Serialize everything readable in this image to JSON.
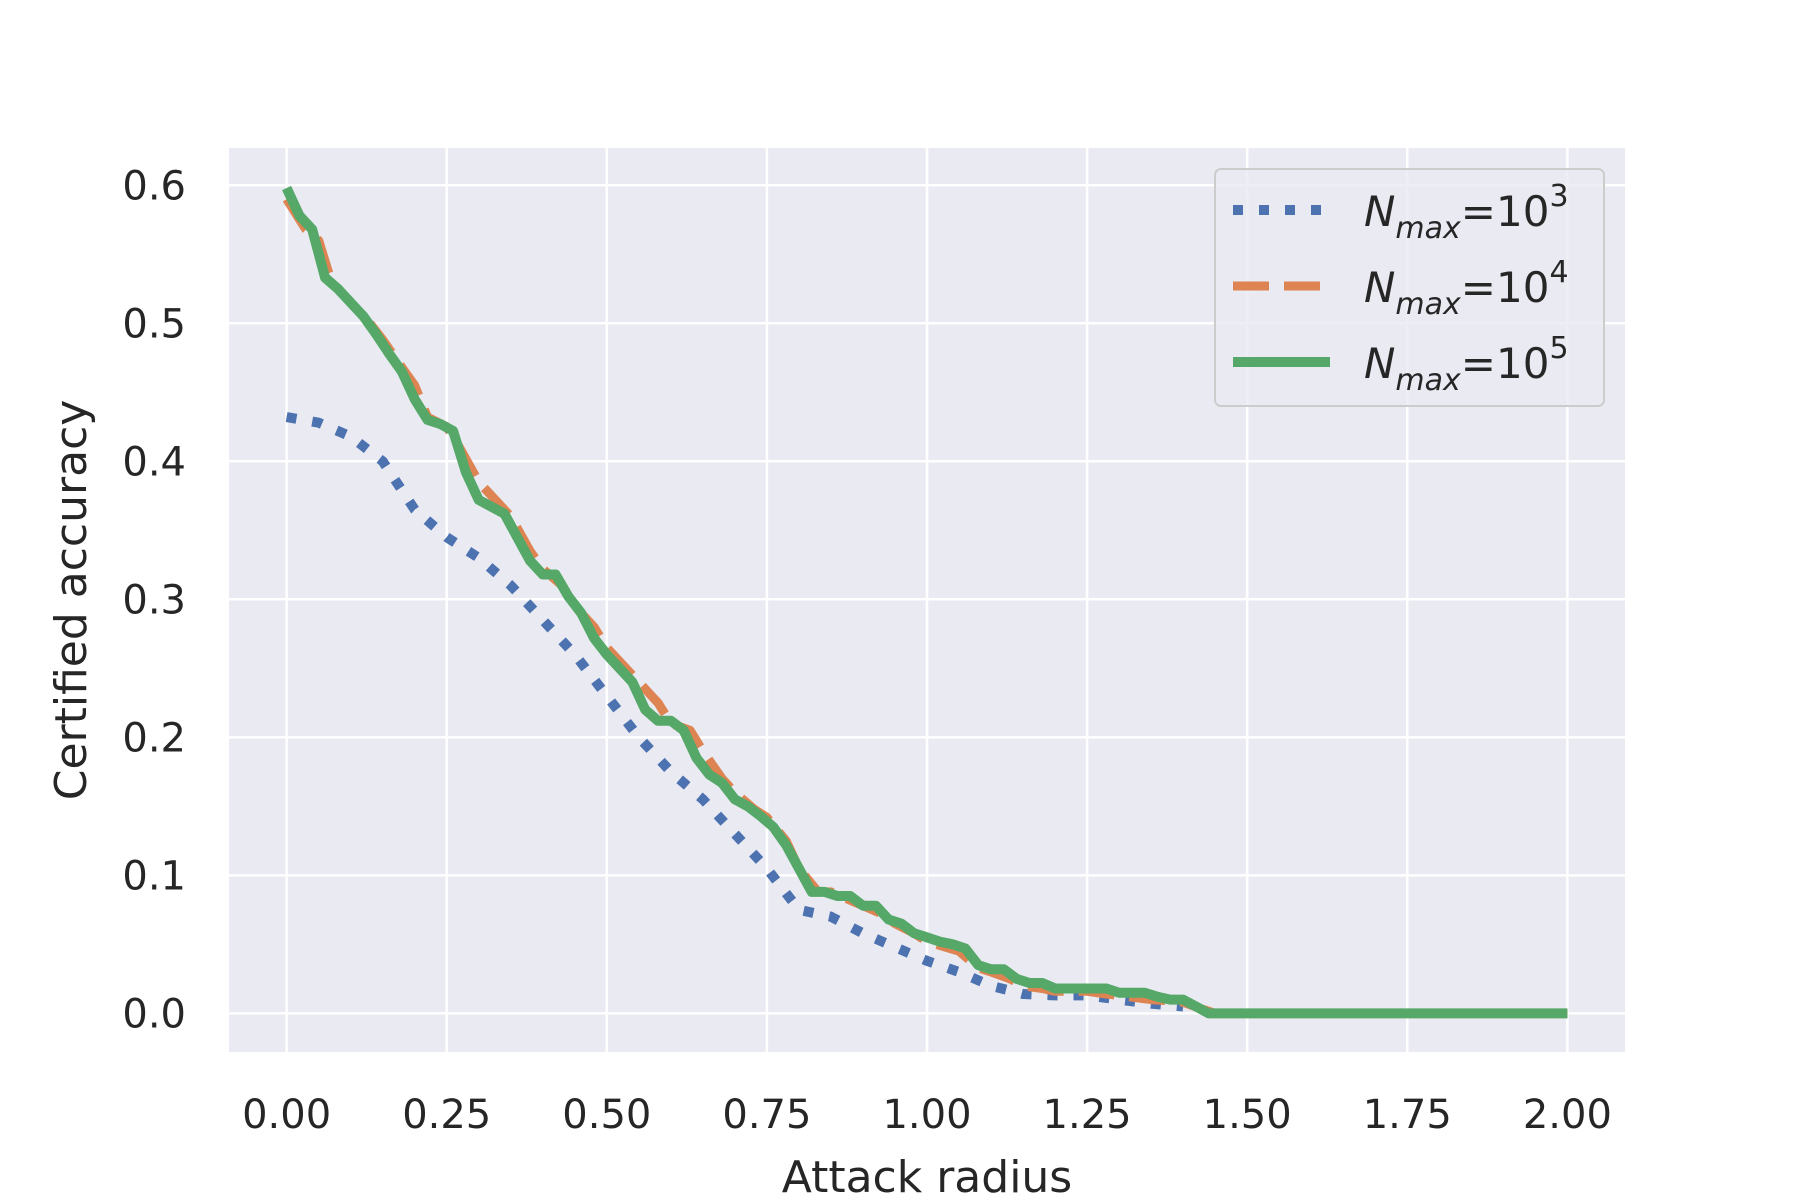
{
  "chart_data": {
    "type": "line",
    "xlabel": "Attack radius",
    "ylabel": "Certified accuracy",
    "xlim": [
      -0.09,
      2.09
    ],
    "ylim": [
      -0.028,
      0.627
    ],
    "xticks": [
      0.0,
      0.25,
      0.5,
      0.75,
      1.0,
      1.25,
      1.5,
      1.75,
      2.0
    ],
    "xtick_labels": [
      "0.00",
      "0.25",
      "0.50",
      "0.75",
      "1.00",
      "1.25",
      "1.50",
      "1.75",
      "2.00"
    ],
    "yticks": [
      0.0,
      0.1,
      0.2,
      0.3,
      0.4,
      0.5,
      0.6
    ],
    "ytick_labels": [
      "0.0",
      "0.1",
      "0.2",
      "0.3",
      "0.4",
      "0.5",
      "0.6"
    ],
    "grid": true,
    "background": "#eaeaf2",
    "legend_position": "top-right",
    "series": [
      {
        "base": "N",
        "sub": "max",
        "eq": "=10",
        "exp": "3",
        "color": "#4c72b0",
        "style": "dotted",
        "x": [
          0.0,
          0.05,
          0.1,
          0.15,
          0.2,
          0.25,
          0.3,
          0.35,
          0.4,
          0.45,
          0.5,
          0.55,
          0.6,
          0.65,
          0.7,
          0.75,
          0.8,
          0.85,
          0.9,
          0.95,
          1.0,
          1.05,
          1.1,
          1.15,
          1.2,
          1.25,
          1.3,
          1.35,
          1.4
        ],
        "y": [
          0.432,
          0.428,
          0.418,
          0.4,
          0.365,
          0.345,
          0.33,
          0.31,
          0.285,
          0.26,
          0.23,
          0.2,
          0.175,
          0.155,
          0.13,
          0.105,
          0.075,
          0.07,
          0.058,
          0.048,
          0.038,
          0.03,
          0.02,
          0.014,
          0.013,
          0.013,
          0.01,
          0.007,
          0.005
        ]
      },
      {
        "base": "N",
        "sub": "max",
        "eq": "=10",
        "exp": "4",
        "color": "#dd8452",
        "style": "dashed",
        "x": [
          0.0,
          0.03,
          0.05,
          0.07,
          0.1,
          0.13,
          0.15,
          0.18,
          0.2,
          0.22,
          0.25,
          0.27,
          0.3,
          0.33,
          0.35,
          0.38,
          0.4,
          0.43,
          0.45,
          0.48,
          0.5,
          0.53,
          0.55,
          0.58,
          0.6,
          0.63,
          0.65,
          0.68,
          0.7,
          0.73,
          0.75,
          0.78,
          0.8,
          0.83,
          0.85,
          0.88,
          0.9,
          0.93,
          0.95,
          0.98,
          1.0,
          1.05,
          1.08,
          1.1,
          1.13,
          1.15,
          1.18,
          1.2,
          1.25,
          1.28,
          1.3,
          1.35,
          1.38,
          1.4,
          1.43,
          1.45,
          1.5,
          1.75,
          2.0
        ],
        "y": [
          0.59,
          0.568,
          0.56,
          0.53,
          0.515,
          0.5,
          0.488,
          0.468,
          0.455,
          0.432,
          0.425,
          0.41,
          0.385,
          0.37,
          0.36,
          0.335,
          0.322,
          0.31,
          0.295,
          0.28,
          0.265,
          0.25,
          0.24,
          0.225,
          0.21,
          0.205,
          0.19,
          0.17,
          0.16,
          0.148,
          0.142,
          0.125,
          0.105,
          0.088,
          0.088,
          0.082,
          0.078,
          0.072,
          0.065,
          0.058,
          0.052,
          0.045,
          0.033,
          0.03,
          0.025,
          0.02,
          0.018,
          0.016,
          0.016,
          0.014,
          0.013,
          0.01,
          0.009,
          0.008,
          0.003,
          0.0,
          0.0,
          0.0,
          0.0
        ]
      },
      {
        "base": "N",
        "sub": "max",
        "eq": "=10",
        "exp": "5",
        "color": "#55a868",
        "style": "solid",
        "x": [
          0.0,
          0.02,
          0.04,
          0.06,
          0.08,
          0.1,
          0.12,
          0.14,
          0.16,
          0.18,
          0.2,
          0.22,
          0.24,
          0.26,
          0.28,
          0.3,
          0.32,
          0.34,
          0.36,
          0.38,
          0.4,
          0.42,
          0.44,
          0.46,
          0.48,
          0.5,
          0.52,
          0.54,
          0.56,
          0.58,
          0.6,
          0.62,
          0.64,
          0.66,
          0.68,
          0.7,
          0.72,
          0.74,
          0.76,
          0.78,
          0.8,
          0.82,
          0.84,
          0.86,
          0.88,
          0.9,
          0.92,
          0.94,
          0.96,
          0.98,
          1.0,
          1.02,
          1.04,
          1.06,
          1.08,
          1.1,
          1.12,
          1.14,
          1.16,
          1.18,
          1.2,
          1.22,
          1.24,
          1.26,
          1.28,
          1.3,
          1.32,
          1.34,
          1.36,
          1.38,
          1.4,
          1.42,
          1.44,
          1.5,
          1.6,
          1.75,
          1.9,
          2.0
        ],
        "y": [
          0.598,
          0.578,
          0.568,
          0.533,
          0.525,
          0.515,
          0.505,
          0.492,
          0.478,
          0.465,
          0.445,
          0.43,
          0.427,
          0.422,
          0.392,
          0.372,
          0.367,
          0.362,
          0.345,
          0.328,
          0.318,
          0.318,
          0.302,
          0.29,
          0.272,
          0.26,
          0.25,
          0.24,
          0.22,
          0.212,
          0.212,
          0.205,
          0.185,
          0.173,
          0.167,
          0.155,
          0.15,
          0.143,
          0.135,
          0.122,
          0.105,
          0.088,
          0.088,
          0.085,
          0.085,
          0.078,
          0.078,
          0.068,
          0.065,
          0.058,
          0.055,
          0.052,
          0.05,
          0.047,
          0.035,
          0.032,
          0.032,
          0.025,
          0.022,
          0.022,
          0.018,
          0.018,
          0.018,
          0.018,
          0.018,
          0.015,
          0.015,
          0.015,
          0.012,
          0.01,
          0.01,
          0.005,
          0.0,
          0.0,
          0.0,
          0.0,
          0.0,
          0.0
        ]
      }
    ]
  }
}
